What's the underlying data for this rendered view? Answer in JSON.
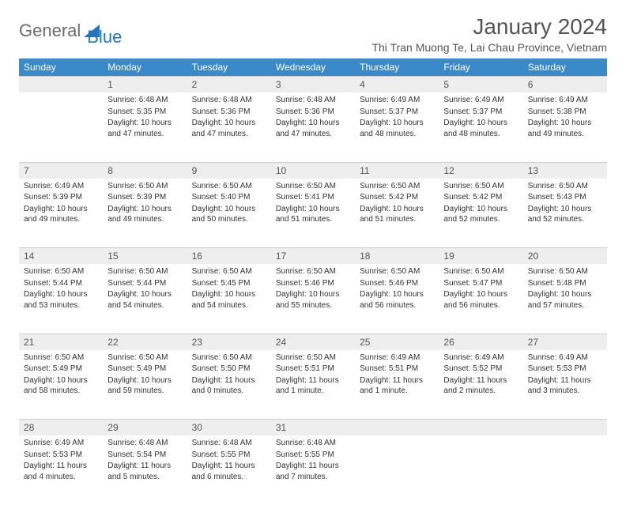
{
  "logo": {
    "text1": "General",
    "text2": "Blue"
  },
  "title": "January 2024",
  "location": "Thi Tran Muong Te, Lai Chau Province, Vietnam",
  "colors": {
    "header_bg": "#3a8ac9",
    "header_text": "#ffffff",
    "daynum_bg": "#eeeeee",
    "logo_gray": "#6a6a6a",
    "logo_blue": "#2176bd"
  },
  "day_headers": [
    "Sunday",
    "Monday",
    "Tuesday",
    "Wednesday",
    "Thursday",
    "Friday",
    "Saturday"
  ],
  "weeks": [
    [
      null,
      {
        "n": "1",
        "sr": "6:48 AM",
        "ss": "5:35 PM",
        "dl": "10 hours and 47 minutes."
      },
      {
        "n": "2",
        "sr": "6:48 AM",
        "ss": "5:36 PM",
        "dl": "10 hours and 47 minutes."
      },
      {
        "n": "3",
        "sr": "6:48 AM",
        "ss": "5:36 PM",
        "dl": "10 hours and 47 minutes."
      },
      {
        "n": "4",
        "sr": "6:49 AM",
        "ss": "5:37 PM",
        "dl": "10 hours and 48 minutes."
      },
      {
        "n": "5",
        "sr": "6:49 AM",
        "ss": "5:37 PM",
        "dl": "10 hours and 48 minutes."
      },
      {
        "n": "6",
        "sr": "6:49 AM",
        "ss": "5:38 PM",
        "dl": "10 hours and 49 minutes."
      }
    ],
    [
      {
        "n": "7",
        "sr": "6:49 AM",
        "ss": "5:39 PM",
        "dl": "10 hours and 49 minutes."
      },
      {
        "n": "8",
        "sr": "6:50 AM",
        "ss": "5:39 PM",
        "dl": "10 hours and 49 minutes."
      },
      {
        "n": "9",
        "sr": "6:50 AM",
        "ss": "5:40 PM",
        "dl": "10 hours and 50 minutes."
      },
      {
        "n": "10",
        "sr": "6:50 AM",
        "ss": "5:41 PM",
        "dl": "10 hours and 51 minutes."
      },
      {
        "n": "11",
        "sr": "6:50 AM",
        "ss": "5:42 PM",
        "dl": "10 hours and 51 minutes."
      },
      {
        "n": "12",
        "sr": "6:50 AM",
        "ss": "5:42 PM",
        "dl": "10 hours and 52 minutes."
      },
      {
        "n": "13",
        "sr": "6:50 AM",
        "ss": "5:43 PM",
        "dl": "10 hours and 52 minutes."
      }
    ],
    [
      {
        "n": "14",
        "sr": "6:50 AM",
        "ss": "5:44 PM",
        "dl": "10 hours and 53 minutes."
      },
      {
        "n": "15",
        "sr": "6:50 AM",
        "ss": "5:44 PM",
        "dl": "10 hours and 54 minutes."
      },
      {
        "n": "16",
        "sr": "6:50 AM",
        "ss": "5:45 PM",
        "dl": "10 hours and 54 minutes."
      },
      {
        "n": "17",
        "sr": "6:50 AM",
        "ss": "5:46 PM",
        "dl": "10 hours and 55 minutes."
      },
      {
        "n": "18",
        "sr": "6:50 AM",
        "ss": "5:46 PM",
        "dl": "10 hours and 56 minutes."
      },
      {
        "n": "19",
        "sr": "6:50 AM",
        "ss": "5:47 PM",
        "dl": "10 hours and 56 minutes."
      },
      {
        "n": "20",
        "sr": "6:50 AM",
        "ss": "5:48 PM",
        "dl": "10 hours and 57 minutes."
      }
    ],
    [
      {
        "n": "21",
        "sr": "6:50 AM",
        "ss": "5:49 PM",
        "dl": "10 hours and 58 minutes."
      },
      {
        "n": "22",
        "sr": "6:50 AM",
        "ss": "5:49 PM",
        "dl": "10 hours and 59 minutes."
      },
      {
        "n": "23",
        "sr": "6:50 AM",
        "ss": "5:50 PM",
        "dl": "11 hours and 0 minutes."
      },
      {
        "n": "24",
        "sr": "6:50 AM",
        "ss": "5:51 PM",
        "dl": "11 hours and 1 minute."
      },
      {
        "n": "25",
        "sr": "6:49 AM",
        "ss": "5:51 PM",
        "dl": "11 hours and 1 minute."
      },
      {
        "n": "26",
        "sr": "6:49 AM",
        "ss": "5:52 PM",
        "dl": "11 hours and 2 minutes."
      },
      {
        "n": "27",
        "sr": "6:49 AM",
        "ss": "5:53 PM",
        "dl": "11 hours and 3 minutes."
      }
    ],
    [
      {
        "n": "28",
        "sr": "6:49 AM",
        "ss": "5:53 PM",
        "dl": "11 hours and 4 minutes."
      },
      {
        "n": "29",
        "sr": "6:48 AM",
        "ss": "5:54 PM",
        "dl": "11 hours and 5 minutes."
      },
      {
        "n": "30",
        "sr": "6:48 AM",
        "ss": "5:55 PM",
        "dl": "11 hours and 6 minutes."
      },
      {
        "n": "31",
        "sr": "6:48 AM",
        "ss": "5:55 PM",
        "dl": "11 hours and 7 minutes."
      },
      null,
      null,
      null
    ]
  ],
  "labels": {
    "sunrise": "Sunrise:",
    "sunset": "Sunset:",
    "daylight": "Daylight:"
  }
}
